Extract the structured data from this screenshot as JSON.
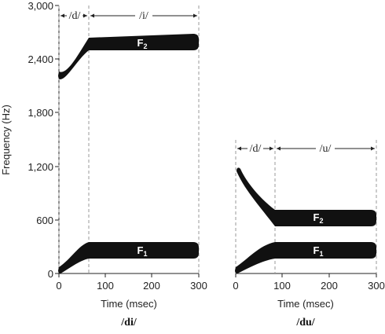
{
  "y_axis": {
    "title": "Frequency (Hz)",
    "ticks": [
      "3,000",
      "2,400",
      "1,800",
      "1,200",
      "600",
      "0"
    ],
    "tick_values": [
      3000,
      2400,
      1800,
      1200,
      600,
      0
    ]
  },
  "panels": [
    {
      "id": "di",
      "syllable": "/di/",
      "x_title": "Time (msec)",
      "x_ticks": [
        "0",
        "100",
        "200",
        "300"
      ],
      "x_tick_values": [
        0,
        100,
        200,
        300
      ],
      "y_range": [
        0,
        3000
      ],
      "segments": [
        {
          "label": "/d/",
          "from": 0,
          "to": 65
        },
        {
          "label": "/i/",
          "from": 65,
          "to": 300
        }
      ],
      "formants": [
        {
          "name": "F",
          "sub": "1",
          "start": 50,
          "steady": 300,
          "transition_end": 65,
          "end": 300
        },
        {
          "name": "F",
          "sub": "2",
          "start": 2200,
          "steady": 2600,
          "transition_end": 65,
          "end": 300
        }
      ]
    },
    {
      "id": "du",
      "syllable": "/du/",
      "x_title": "Time (msec)",
      "x_ticks": [
        "0",
        "100",
        "200",
        "300"
      ],
      "x_tick_values": [
        0,
        100,
        200,
        300
      ],
      "y_range": [
        0,
        1500
      ],
      "segments": [
        {
          "label": "/d/",
          "from": 0,
          "to": 85
        },
        {
          "label": "/u/",
          "from": 85,
          "to": 300
        }
      ],
      "formants": [
        {
          "name": "F",
          "sub": "1",
          "start": 50,
          "steady": 300,
          "transition_end": 85,
          "end": 300
        },
        {
          "name": "F",
          "sub": "2",
          "start": 1150,
          "steady": 630,
          "transition_end": 85,
          "end": 300
        }
      ]
    }
  ]
}
